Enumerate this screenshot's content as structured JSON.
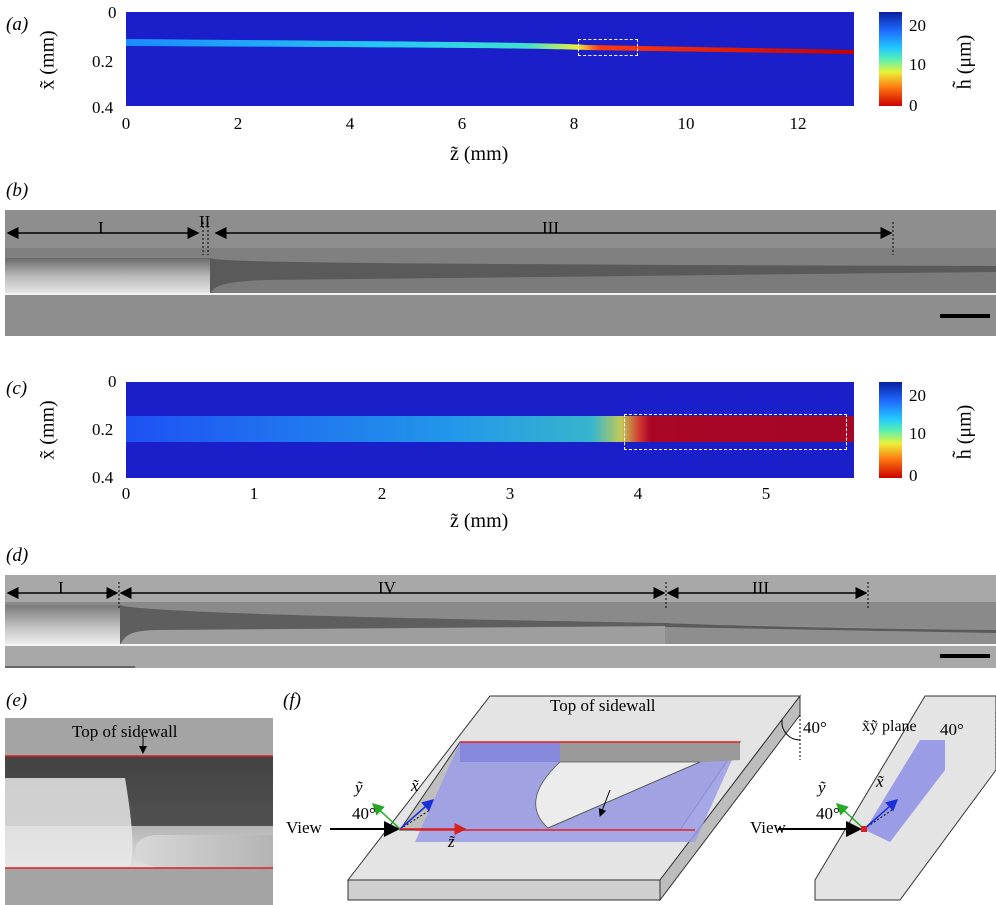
{
  "panels": {
    "a": {
      "label": "(a)",
      "xlabel": "z̃ (mm)",
      "ylabel": "x̃ (mm)",
      "xticks": [
        "0",
        "2",
        "4",
        "6",
        "8",
        "10",
        "12"
      ],
      "yticks": [
        "0",
        "0.2",
        "0.4"
      ],
      "cbar_label": "h̃ (μm)",
      "cbar_ticks": [
        "20",
        "10",
        "0"
      ]
    },
    "b": {
      "label": "(b)",
      "regions": [
        "I",
        "II",
        "III"
      ]
    },
    "c": {
      "label": "(c)",
      "xlabel": "z̃ (mm)",
      "ylabel": "x̃ (mm)",
      "xticks": [
        "0",
        "1",
        "2",
        "3",
        "4",
        "5"
      ],
      "yticks": [
        "0",
        "0.2",
        "0.4"
      ],
      "cbar_label": "h̃ (μm)",
      "cbar_ticks": [
        "20",
        "10",
        "0"
      ]
    },
    "d": {
      "label": "(d)",
      "regions": [
        "I",
        "IV",
        "III"
      ]
    },
    "e": {
      "label": "(e)",
      "annotation": "Top of sidewall"
    },
    "f": {
      "label": "(f)",
      "annotation": "Top of sidewall",
      "view_label": "View",
      "angle_label": "40°",
      "axis_x": "x̃",
      "axis_y": "ỹ",
      "axis_z": "z̃",
      "plane_label": "x̃ỹ plane"
    }
  },
  "chart_data": [
    {
      "type": "heatmap",
      "title": "",
      "xlabel": "z̃ (mm)",
      "ylabel": "x̃ (mm)",
      "xlim": [
        0,
        13
      ],
      "ylim": [
        0,
        0.4
      ],
      "colorbar": {
        "label": "h̃ (μm)",
        "range": [
          0,
          22
        ],
        "ticks": [
          0,
          10,
          20
        ]
      }
    },
    {
      "type": "heatmap",
      "title": "",
      "xlabel": "z̃ (mm)",
      "ylabel": "x̃ (mm)",
      "xlim": [
        0,
        5.7
      ],
      "ylim": [
        0,
        0.4
      ],
      "colorbar": {
        "label": "h̃ (μm)",
        "range": [
          0,
          22
        ],
        "ticks": [
          0,
          10,
          20
        ]
      }
    }
  ],
  "colors": {
    "heatmap_bg": "#1a1fc9",
    "wall_line": "#e02020",
    "plane_fill": "#8c8fe8",
    "axis_x_color": "#1a2fd8",
    "axis_y_color": "#22aa22",
    "axis_z_color": "#d82020"
  }
}
